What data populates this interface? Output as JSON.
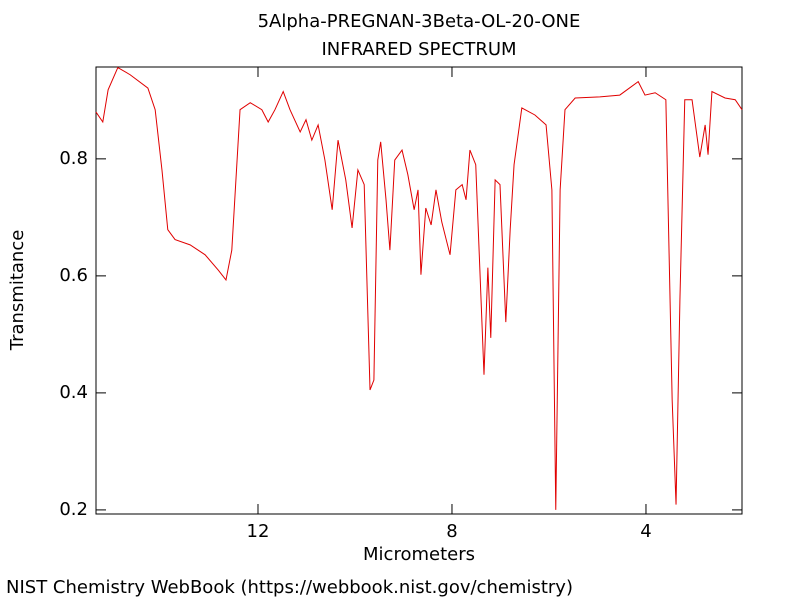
{
  "chart_data": {
    "type": "line",
    "title": "5Alpha-PREGNAN-3Beta-OL-20-ONE",
    "subtitle": "INFRARED SPECTRUM",
    "x_label": "Micrometers",
    "y_label": "Transmitance",
    "footer": "NIST Chemistry WebBook (https://webbook.nist.gov/chemistry)",
    "xlim": [
      15.34,
      2.02
    ],
    "ylim": [
      0.193,
      0.957
    ],
    "xticks": [
      12,
      8,
      4
    ],
    "yticks": [
      0.2,
      0.4,
      0.6,
      0.8
    ],
    "grid": false,
    "series": [
      {
        "color": "#e00000",
        "x": [
          15.34,
          15.2,
          15.09,
          14.89,
          14.64,
          14.27,
          14.12,
          13.98,
          13.86,
          13.71,
          13.4,
          13.09,
          12.82,
          12.66,
          12.54,
          12.37,
          12.16,
          11.92,
          11.79,
          11.65,
          11.48,
          11.34,
          11.13,
          11.01,
          10.89,
          10.76,
          10.62,
          10.47,
          10.35,
          10.19,
          10.06,
          9.94,
          9.81,
          9.69,
          9.61,
          9.53,
          9.47,
          9.36,
          9.28,
          9.18,
          9.03,
          8.91,
          8.78,
          8.7,
          8.64,
          8.54,
          8.43,
          8.33,
          8.21,
          8.04,
          7.92,
          7.79,
          7.71,
          7.63,
          7.51,
          7.34,
          7.26,
          7.2,
          7.11,
          7.01,
          6.89,
          6.8,
          6.72,
          6.56,
          6.29,
          6.06,
          5.94,
          5.86,
          5.77,
          5.67,
          5.46,
          4.95,
          4.54,
          4.16,
          4.02,
          3.81,
          3.59,
          3.46,
          3.38,
          3.3,
          3.2,
          3.05,
          2.89,
          2.78,
          2.72,
          2.64,
          2.37,
          2.16,
          2.02
        ],
        "values": [
          0.88,
          0.863,
          0.918,
          0.956,
          0.944,
          0.921,
          0.884,
          0.781,
          0.679,
          0.662,
          0.653,
          0.636,
          0.61,
          0.593,
          0.644,
          0.884,
          0.896,
          0.884,
          0.863,
          0.884,
          0.915,
          0.884,
          0.846,
          0.867,
          0.832,
          0.858,
          0.798,
          0.713,
          0.832,
          0.764,
          0.682,
          0.781,
          0.756,
          0.405,
          0.422,
          0.798,
          0.829,
          0.73,
          0.644,
          0.798,
          0.815,
          0.773,
          0.713,
          0.747,
          0.602,
          0.716,
          0.687,
          0.747,
          0.692,
          0.636,
          0.747,
          0.756,
          0.73,
          0.815,
          0.79,
          0.431,
          0.614,
          0.494,
          0.764,
          0.756,
          0.521,
          0.679,
          0.79,
          0.887,
          0.875,
          0.858,
          0.747,
          0.2,
          0.747,
          0.884,
          0.904,
          0.906,
          0.909,
          0.932,
          0.909,
          0.913,
          0.901,
          0.388,
          0.209,
          0.559,
          0.901,
          0.901,
          0.803,
          0.858,
          0.807,
          0.915,
          0.904,
          0.901,
          0.884
        ]
      }
    ]
  }
}
